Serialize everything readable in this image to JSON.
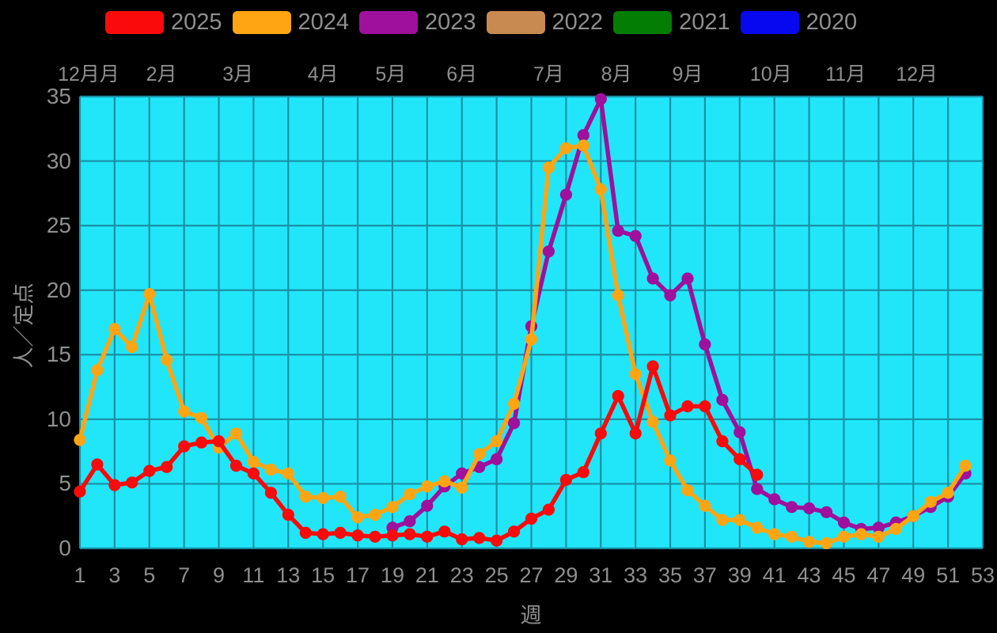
{
  "colors": {
    "page_background": "#000000",
    "plot_background": "#21e6f9",
    "gridline": "#1b8fa4",
    "text": "#8f8f8f"
  },
  "legend": {
    "items": [
      {
        "label": "2025",
        "color": "#fa0a0a"
      },
      {
        "label": "2024",
        "color": "#ffa513"
      },
      {
        "label": "2023",
        "color": "#9f109c"
      },
      {
        "label": "2022",
        "color": "#c98a52"
      },
      {
        "label": "2021",
        "color": "#037d03"
      },
      {
        "label": "2020",
        "color": "#0808f0"
      }
    ]
  },
  "chart_data": {
    "type": "line",
    "title": "",
    "xlabel": "週",
    "ylabel": "人／定点",
    "xlim": [
      1,
      53
    ],
    "ylim": [
      0,
      35
    ],
    "grid": true,
    "legend_position": "top",
    "x_ticks": [
      1,
      3,
      5,
      7,
      9,
      11,
      13,
      15,
      17,
      19,
      21,
      23,
      25,
      27,
      29,
      31,
      33,
      35,
      37,
      39,
      41,
      43,
      45,
      47,
      49,
      51,
      53
    ],
    "y_ticks": [
      0,
      5,
      10,
      15,
      20,
      25,
      30,
      35
    ],
    "top_axis_months": [
      {
        "label": "12月月",
        "week": 1.5
      },
      {
        "label": "2月",
        "week": 5.7
      },
      {
        "label": "3月",
        "week": 10.1
      },
      {
        "label": "4月",
        "week": 15.0
      },
      {
        "label": "5月",
        "week": 18.9
      },
      {
        "label": "6月",
        "week": 23.0
      },
      {
        "label": "7月",
        "week": 28.0
      },
      {
        "label": "8月",
        "week": 31.9
      },
      {
        "label": "9月",
        "week": 36.0
      },
      {
        "label": "10月",
        "week": 40.8
      },
      {
        "label": "11月",
        "week": 45.1
      },
      {
        "label": "12月",
        "week": 49.2
      }
    ],
    "series": [
      {
        "name": "2025",
        "color": "#fa0a0a",
        "start_week": 1,
        "values": [
          4.4,
          6.5,
          4.9,
          5.1,
          6.0,
          6.3,
          7.9,
          8.2,
          8.3,
          6.4,
          5.8,
          4.3,
          2.6,
          1.2,
          1.1,
          1.2,
          1.0,
          0.9,
          1.0,
          1.1,
          0.9,
          1.3,
          0.7,
          0.8,
          0.6,
          1.3,
          2.3,
          3.0,
          5.3,
          5.9,
          8.9,
          11.8,
          8.9,
          14.1,
          10.3,
          11.0,
          11.0,
          8.3,
          6.9,
          5.7
        ]
      },
      {
        "name": "2024",
        "color": "#ffa513",
        "start_week": 1,
        "values": [
          8.4,
          13.8,
          17.0,
          15.6,
          19.7,
          14.6,
          10.6,
          10.1,
          7.8,
          8.9,
          6.7,
          6.1,
          5.8,
          4.0,
          3.9,
          4.0,
          2.4,
          2.6,
          3.2,
          4.2,
          4.8,
          5.2,
          4.7,
          7.3,
          8.3,
          11.2,
          16.2,
          29.5,
          31.0,
          31.2,
          27.8,
          19.6,
          13.5,
          9.8,
          6.8,
          4.5,
          3.3,
          2.2,
          2.2,
          1.6,
          1.1,
          0.9,
          0.5,
          0.4,
          0.9,
          1.1,
          0.9,
          1.5,
          2.5,
          3.6,
          4.3,
          6.4
        ]
      },
      {
        "name": "2023",
        "color": "#9f109c",
        "start_week": 19,
        "values": [
          1.6,
          2.1,
          3.3,
          4.8,
          5.8,
          6.3,
          6.9,
          9.7,
          17.2,
          23.0,
          27.4,
          32.0,
          34.8,
          24.6,
          24.2,
          20.9,
          19.6,
          20.9,
          15.8,
          11.5,
          9.0,
          4.6,
          3.8,
          3.2,
          3.1,
          2.8,
          2.0,
          1.5,
          1.6,
          2.0,
          2.5,
          3.2,
          4.0,
          5.8
        ]
      },
      {
        "name": "2022",
        "color": "#c98a52",
        "start_week": null,
        "values": []
      },
      {
        "name": "2021",
        "color": "#037d03",
        "start_week": null,
        "values": []
      },
      {
        "name": "2020",
        "color": "#0808f0",
        "start_week": null,
        "values": []
      }
    ],
    "draw_order": [
      "2022",
      "2021",
      "2020",
      "2023",
      "2024",
      "2025"
    ]
  }
}
